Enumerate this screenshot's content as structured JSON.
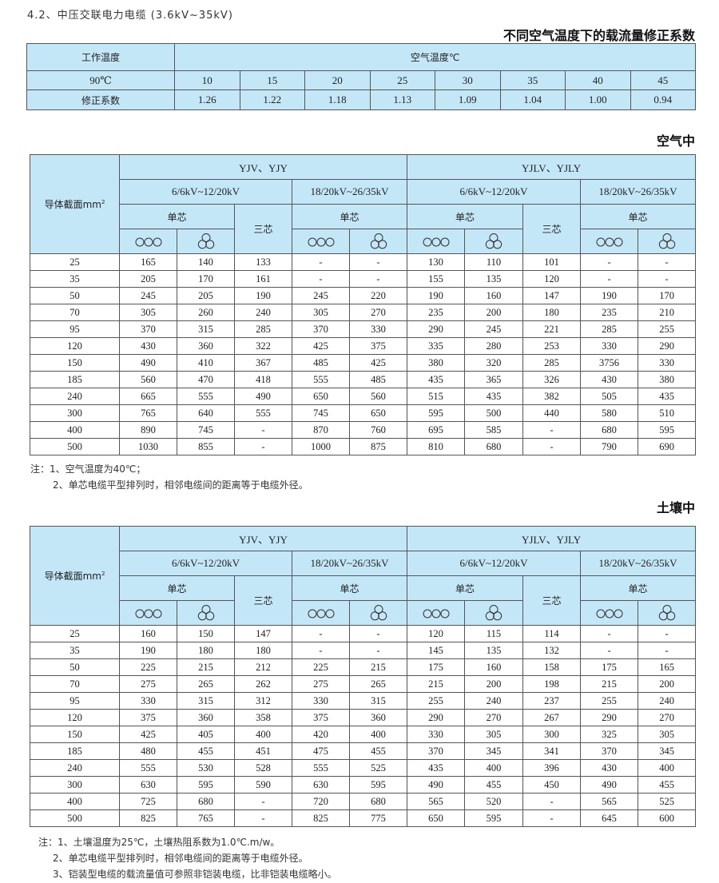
{
  "doc_title": "4.2、中压交联电力电缆 (3.6kV~35kV)",
  "correction": {
    "title": "不同空气温度下的载流量修正系数",
    "work_temp_label": "工作温度",
    "air_temp_label": "空气温度℃",
    "work_temp_value": "90℃",
    "factor_label": "修正系数",
    "air_temps": [
      "10",
      "15",
      "20",
      "25",
      "30",
      "35",
      "40",
      "45"
    ],
    "factors": [
      "1.26",
      "1.22",
      "1.18",
      "1.13",
      "1.09",
      "1.04",
      "1.00",
      "0.94"
    ]
  },
  "header": {
    "conductor_label": "导体截面mm",
    "conductor_sup": "2",
    "group1": "YJV、YJY",
    "group2": "YJLV、YJLY",
    "volt1": "6/6kV~12/20kV",
    "volt2": "18/20kV~26/35kV",
    "single_core": "单芯",
    "three_core": "三芯",
    "icons": {
      "flat": "three-circles-flat-icon",
      "trefoil": "three-circles-trefoil-icon"
    }
  },
  "air": {
    "title": "空气中",
    "rows": [
      [
        "25",
        "165",
        "140",
        "133",
        "-",
        "-",
        "130",
        "110",
        "101",
        "-",
        "-"
      ],
      [
        "35",
        "205",
        "170",
        "161",
        "-",
        "-",
        "155",
        "135",
        "120",
        "-",
        "-"
      ],
      [
        "50",
        "245",
        "205",
        "190",
        "245",
        "220",
        "190",
        "160",
        "147",
        "190",
        "170"
      ],
      [
        "70",
        "305",
        "260",
        "240",
        "305",
        "270",
        "235",
        "200",
        "180",
        "235",
        "210"
      ],
      [
        "95",
        "370",
        "315",
        "285",
        "370",
        "330",
        "290",
        "245",
        "221",
        "285",
        "255"
      ],
      [
        "120",
        "430",
        "360",
        "322",
        "425",
        "375",
        "335",
        "280",
        "253",
        "330",
        "290"
      ],
      [
        "150",
        "490",
        "410",
        "367",
        "485",
        "425",
        "380",
        "320",
        "285",
        "3756",
        "330"
      ],
      [
        "185",
        "560",
        "470",
        "418",
        "555",
        "485",
        "435",
        "365",
        "326",
        "430",
        "380"
      ],
      [
        "240",
        "665",
        "555",
        "490",
        "650",
        "560",
        "515",
        "435",
        "382",
        "505",
        "435"
      ],
      [
        "300",
        "765",
        "640",
        "555",
        "745",
        "650",
        "595",
        "500",
        "440",
        "580",
        "510"
      ],
      [
        "400",
        "890",
        "745",
        "-",
        "870",
        "760",
        "695",
        "585",
        "-",
        "680",
        "595"
      ],
      [
        "500",
        "1030",
        "855",
        "-",
        "1000",
        "875",
        "810",
        "680",
        "-",
        "790",
        "690"
      ]
    ],
    "notes": [
      "注：1、空气温度为40℃；",
      "2、单芯电缆平型排列时，相邻电缆间的距离等于电缆外径。"
    ]
  },
  "soil": {
    "title": "土壤中",
    "rows": [
      [
        "25",
        "160",
        "150",
        "147",
        "-",
        "-",
        "120",
        "115",
        "114",
        "-",
        "-"
      ],
      [
        "35",
        "190",
        "180",
        "180",
        "-",
        "-",
        "145",
        "135",
        "132",
        "-",
        "-"
      ],
      [
        "50",
        "225",
        "215",
        "212",
        "225",
        "215",
        "175",
        "160",
        "158",
        "175",
        "165"
      ],
      [
        "70",
        "275",
        "265",
        "262",
        "275",
        "265",
        "215",
        "200",
        "198",
        "215",
        "200"
      ],
      [
        "95",
        "330",
        "315",
        "312",
        "330",
        "315",
        "255",
        "240",
        "237",
        "255",
        "240"
      ],
      [
        "120",
        "375",
        "360",
        "358",
        "375",
        "360",
        "290",
        "270",
        "267",
        "290",
        "270"
      ],
      [
        "150",
        "425",
        "405",
        "400",
        "420",
        "400",
        "330",
        "305",
        "300",
        "325",
        "305"
      ],
      [
        "185",
        "480",
        "455",
        "451",
        "475",
        "455",
        "370",
        "345",
        "341",
        "370",
        "345"
      ],
      [
        "240",
        "555",
        "530",
        "528",
        "555",
        "525",
        "435",
        "400",
        "396",
        "430",
        "400"
      ],
      [
        "300",
        "630",
        "595",
        "590",
        "630",
        "595",
        "490",
        "455",
        "450",
        "490",
        "455"
      ],
      [
        "400",
        "725",
        "680",
        "-",
        "720",
        "680",
        "565",
        "520",
        "-",
        "565",
        "525"
      ],
      [
        "500",
        "825",
        "765",
        "-",
        "825",
        "775",
        "650",
        "595",
        "-",
        "645",
        "600"
      ]
    ],
    "notes": [
      "注：1、土壤温度为25℃，土壤热阻系数为1.0℃.m/w。",
      "2、单芯电缆平型排列时，相邻电缆间的距离等于电缆外径。",
      "3、铠装型电缆的载流量值可参照非铠装电缆，比非铠装电缆略小。"
    ]
  },
  "colors": {
    "header_bg": "#c4e7f8",
    "border": "#555555"
  }
}
